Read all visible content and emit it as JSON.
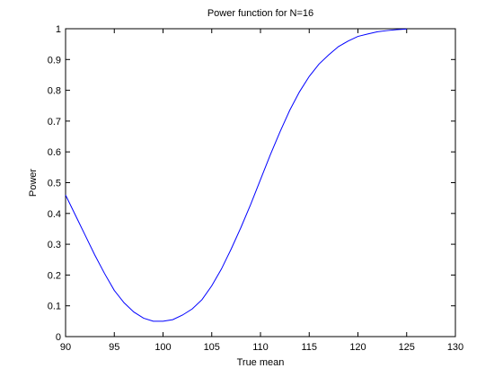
{
  "chart_data": {
    "type": "line",
    "title": "Power function for N=16",
    "xlabel": "True mean",
    "ylabel": "Power",
    "xlim": [
      90,
      130
    ],
    "ylim": [
      0,
      1
    ],
    "xticks": [
      90,
      95,
      100,
      105,
      110,
      115,
      120,
      125,
      130
    ],
    "yticks": [
      0,
      0.1,
      0.2,
      0.3,
      0.4,
      0.5,
      0.6,
      0.7,
      0.8,
      0.9,
      1
    ],
    "ytick_labels": [
      "0",
      "0.1",
      "0.2",
      "0.3",
      "0.4",
      "0.5",
      "0.6",
      "0.7",
      "0.8",
      "0.9",
      "1"
    ],
    "grid": false,
    "legend": "none",
    "line_color": "#0000ff",
    "series": [
      {
        "x": [
          90,
          91,
          92,
          93,
          94,
          95,
          96,
          97,
          98,
          99,
          100,
          101,
          102,
          103,
          104,
          105,
          106,
          107,
          108,
          109,
          110,
          111,
          112,
          113,
          114,
          115,
          116,
          117,
          118,
          119,
          120,
          121,
          122,
          123,
          124,
          125
        ],
        "y": [
          0.46,
          0.395,
          0.33,
          0.265,
          0.205,
          0.15,
          0.11,
          0.08,
          0.06,
          0.05,
          0.05,
          0.055,
          0.07,
          0.09,
          0.12,
          0.165,
          0.22,
          0.285,
          0.355,
          0.43,
          0.51,
          0.59,
          0.665,
          0.735,
          0.795,
          0.845,
          0.885,
          0.915,
          0.942,
          0.96,
          0.975,
          0.983,
          0.99,
          0.994,
          0.997,
          0.999
        ]
      }
    ]
  }
}
